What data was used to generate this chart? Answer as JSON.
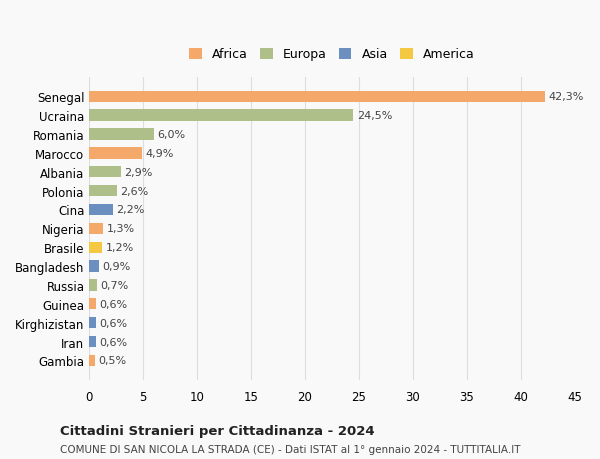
{
  "countries": [
    "Senegal",
    "Ucraina",
    "Romania",
    "Marocco",
    "Albania",
    "Polonia",
    "Cina",
    "Nigeria",
    "Brasile",
    "Bangladesh",
    "Russia",
    "Guinea",
    "Kirghizistan",
    "Iran",
    "Gambia"
  ],
  "values": [
    42.3,
    24.5,
    6.0,
    4.9,
    2.9,
    2.6,
    2.2,
    1.3,
    1.2,
    0.9,
    0.7,
    0.6,
    0.6,
    0.6,
    0.5
  ],
  "labels": [
    "42,3%",
    "24,5%",
    "6,0%",
    "4,9%",
    "2,9%",
    "2,6%",
    "2,2%",
    "1,3%",
    "1,2%",
    "0,9%",
    "0,7%",
    "0,6%",
    "0,6%",
    "0,6%",
    "0,5%"
  ],
  "continents": [
    "Africa",
    "Europa",
    "Europa",
    "Africa",
    "Europa",
    "Europa",
    "Asia",
    "Africa",
    "America",
    "Asia",
    "Europa",
    "Africa",
    "Asia",
    "Asia",
    "Africa"
  ],
  "continent_colors": {
    "Africa": "#F4A96A",
    "Europa": "#AEBF8A",
    "Asia": "#6B8FBF",
    "America": "#F5C842"
  },
  "legend_order": [
    "Africa",
    "Europa",
    "Asia",
    "America"
  ],
  "title": "Cittadini Stranieri per Cittadinanza - 2024",
  "subtitle": "COMUNE DI SAN NICOLA LA STRADA (CE) - Dati ISTAT al 1° gennaio 2024 - TUTTITALIA.IT",
  "xlim": [
    0,
    45
  ],
  "xticks": [
    0,
    5,
    10,
    15,
    20,
    25,
    30,
    35,
    40,
    45
  ],
  "bg_color": "#f9f9f9",
  "grid_color": "#dddddd"
}
